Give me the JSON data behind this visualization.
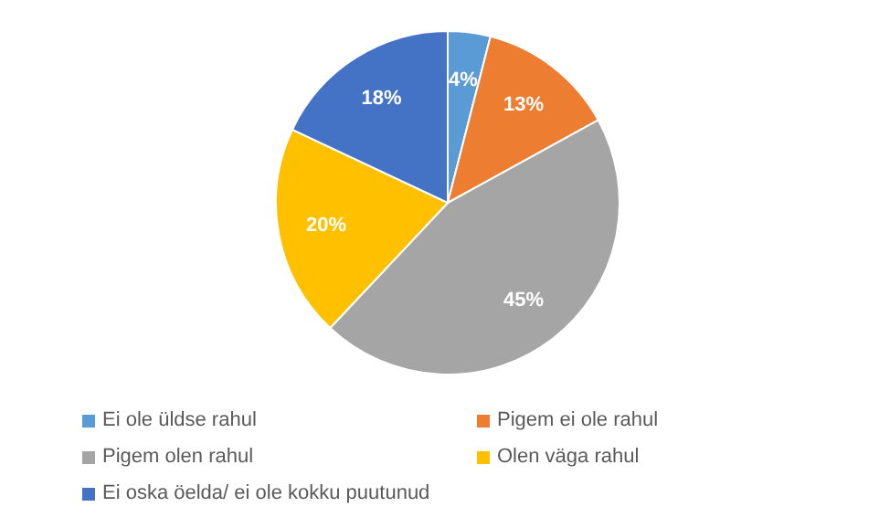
{
  "chart_data": {
    "type": "pie",
    "categories": [
      "Ei ole üldse rahul",
      "Pigem ei ole rahul",
      "Pigem olen rahul",
      "Olen väga rahul",
      "Ei oska öelda/ ei ole kokku puutunud"
    ],
    "values": [
      4,
      13,
      45,
      20,
      18
    ],
    "colors": [
      "#5b9bd5",
      "#ed7d31",
      "#a5a5a5",
      "#ffc000",
      "#4472c4"
    ],
    "value_labels": [
      "4%",
      "13%",
      "45%",
      "20%",
      "18%"
    ],
    "legend": "bottom"
  }
}
